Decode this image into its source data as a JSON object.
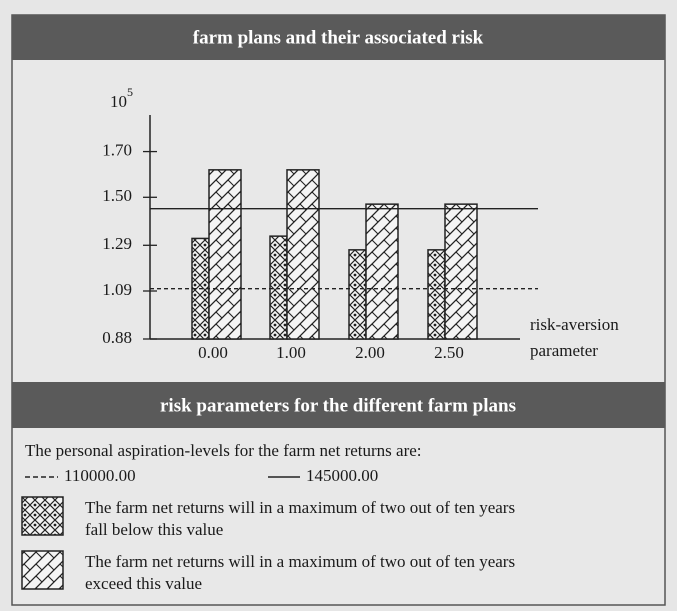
{
  "chart_data": {
    "type": "bar",
    "title": "farm plans and their associated risk",
    "categories": [
      "0.00",
      "1.00",
      "2.00",
      "2.50"
    ],
    "series": [
      {
        "name": "The farm net returns will in a maximum of two out of ten years fall below this value",
        "color": "#222222",
        "pattern": "diamond",
        "values": [
          1.32,
          1.33,
          1.27,
          1.27
        ]
      },
      {
        "name": "The farm net returns will in a maximum of two out of ten years exceed this value",
        "color": "#222222",
        "pattern": "hatch",
        "values": [
          1.62,
          1.62,
          1.47,
          1.47
        ]
      }
    ],
    "ylim": [
      0.88,
      1.86
    ],
    "yticks": [
      0.88,
      1.09,
      1.29,
      {
        "value": 1.5,
        "label": "1.50"
      },
      {
        "value": 1.7,
        "label": "1.70"
      }
    ],
    "y_multiplier": {
      "base": "10",
      "exponent": "5"
    },
    "x_label": [
      "risk-aversion",
      "parameter"
    ],
    "reference_lines": [
      {
        "value": 1.1,
        "label": "110000.00",
        "style": "dashed"
      },
      {
        "value": 1.45,
        "label": "145000.00",
        "style": "solid"
      }
    ],
    "legend_title": "risk parameters for the different farm plans",
    "legend_intro": "The personal aspiration-levels for the farm net returns are:"
  }
}
